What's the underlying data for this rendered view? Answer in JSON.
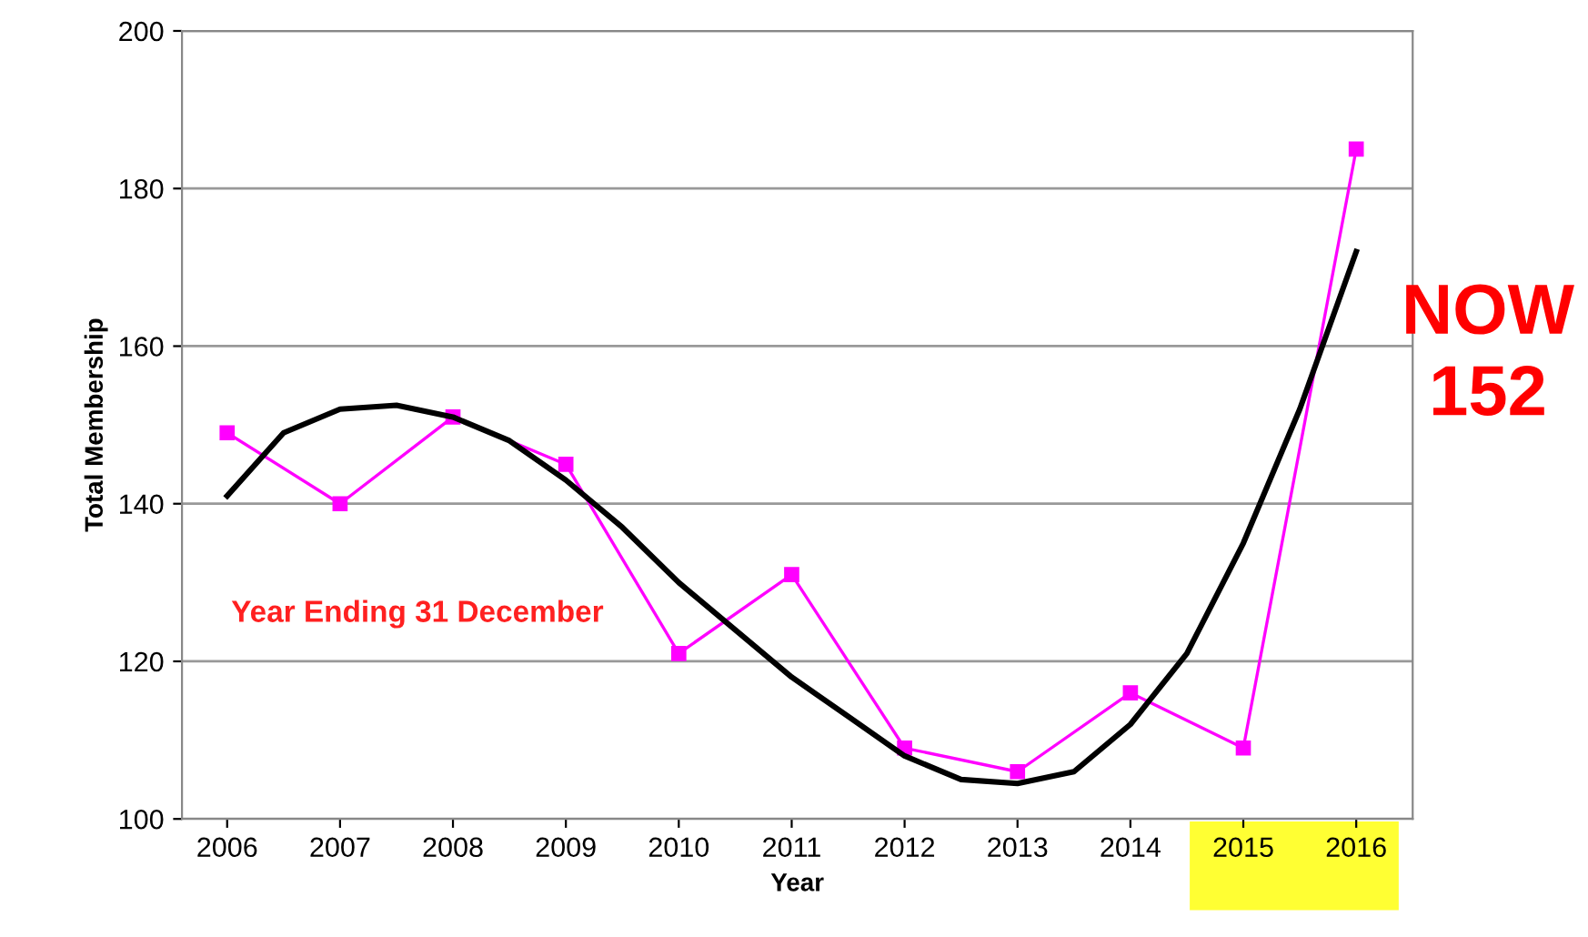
{
  "chart_data": {
    "type": "line",
    "xlabel": "Year",
    "ylabel": "Total Membership",
    "xlim": [
      2005.6,
      2016.5
    ],
    "xticks": [
      2006,
      2007,
      2008,
      2009,
      2010,
      2011,
      2012,
      2013,
      2014,
      2015,
      2016
    ],
    "ylim": [
      100,
      200
    ],
    "yticks": [
      100,
      120,
      140,
      160,
      180,
      200
    ],
    "grid": "y",
    "legend": false,
    "series": [
      {
        "color": "#ff00ff",
        "marker": "square",
        "x": [
          2006,
          2007,
          2008,
          2009,
          2010,
          2011,
          2012,
          2013,
          2014,
          2015,
          2016
        ],
        "values": [
          149,
          140,
          151,
          145,
          121,
          131,
          109,
          106,
          116,
          109,
          185
        ]
      },
      {
        "color": "#000000",
        "marker": "none",
        "x": [
          2006,
          2006.5,
          2007,
          2007.5,
          2008,
          2008.5,
          2009,
          2009.5,
          2010,
          2010.5,
          2011,
          2011.5,
          2012,
          2012.5,
          2013,
          2013.5,
          2014,
          2014.5,
          2015,
          2015.5,
          2016
        ],
        "values": [
          141,
          149,
          152,
          152.5,
          151,
          148,
          143,
          137,
          130,
          124,
          118,
          113,
          108,
          105,
          104.5,
          106,
          112,
          121,
          135,
          152,
          172
        ]
      }
    ],
    "annotations": [
      "Year Ending 31 December",
      "NOW\n152"
    ]
  }
}
